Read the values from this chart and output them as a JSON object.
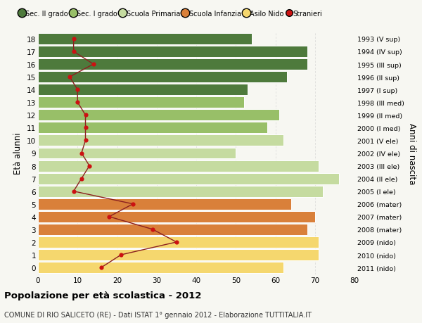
{
  "ages": [
    0,
    1,
    2,
    3,
    4,
    5,
    6,
    7,
    8,
    9,
    10,
    11,
    12,
    13,
    14,
    15,
    16,
    17,
    18
  ],
  "bar_values": [
    62,
    71,
    71,
    68,
    70,
    64,
    72,
    76,
    71,
    50,
    62,
    58,
    61,
    52,
    53,
    63,
    68,
    68,
    54
  ],
  "stranieri": [
    16,
    21,
    35,
    29,
    18,
    24,
    9,
    11,
    13,
    11,
    12,
    12,
    12,
    10,
    10,
    8,
    14,
    9,
    9
  ],
  "right_labels": [
    "2011 (nido)",
    "2010 (nido)",
    "2009 (nido)",
    "2008 (mater)",
    "2007 (mater)",
    "2006 (mater)",
    "2005 (I ele)",
    "2004 (II ele)",
    "2003 (III ele)",
    "2002 (IV ele)",
    "2001 (V ele)",
    "2000 (I med)",
    "1999 (II med)",
    "1998 (III med)",
    "1997 (I sup)",
    "1996 (II sup)",
    "1995 (III sup)",
    "1994 (IV sup)",
    "1993 (V sup)"
  ],
  "bar_colors": [
    "#f5d76e",
    "#f5d76e",
    "#f5d76e",
    "#d9803a",
    "#d9803a",
    "#d9803a",
    "#c5dba0",
    "#c5dba0",
    "#c5dba0",
    "#c5dba0",
    "#c5dba0",
    "#98bf68",
    "#98bf68",
    "#98bf68",
    "#4e7a3c",
    "#4e7a3c",
    "#4e7a3c",
    "#4e7a3c",
    "#4e7a3c"
  ],
  "legend_labels": [
    "Sec. II grado",
    "Sec. I grado",
    "Scuola Primaria",
    "Scuola Infanzia",
    "Asilo Nido",
    "Stranieri"
  ],
  "legend_colors": [
    "#4e7a3c",
    "#98bf68",
    "#c5dba0",
    "#d9803a",
    "#f5d76e",
    "#cc1111"
  ],
  "stranieri_color": "#cc1111",
  "line_color": "#8b2020",
  "ylabel": "Età alunni",
  "right_ylabel": "Anni di nascita",
  "title": "Popolazione per età scolastica - 2012",
  "subtitle": "COMUNE DI RIO SALICETO (RE) - Dati ISTAT 1° gennaio 2012 - Elaborazione TUTTITALIA.IT",
  "xlim": [
    0,
    80
  ],
  "bg_color": "#f7f7f2",
  "grid_color": "#d8d8d8"
}
